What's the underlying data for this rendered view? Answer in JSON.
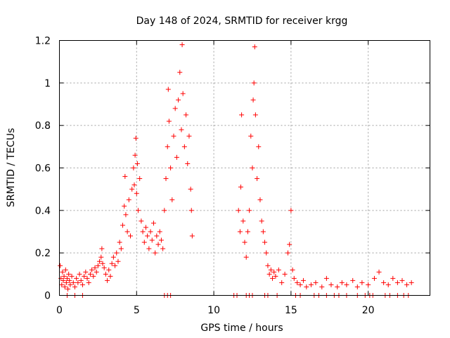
{
  "chart_data": {
    "type": "scatter",
    "title": "Day 148 of 2024, SRMTID for receiver krgg",
    "xlabel": "GPS time / hours",
    "ylabel": "SRMTID / TECUs",
    "xlim": [
      0,
      24
    ],
    "ylim": [
      0,
      1.2
    ],
    "x_ticks": [
      0,
      5,
      10,
      15,
      20
    ],
    "x_tick_labels": [
      "0",
      "5",
      "10",
      "15",
      "20"
    ],
    "y_ticks": [
      0,
      0.2,
      0.4,
      0.6,
      0.8,
      1.0,
      1.2
    ],
    "y_tick_labels": [
      "0",
      "0.2",
      "0.4",
      "0.6",
      "0.8",
      "1",
      "1.2"
    ],
    "grid": true,
    "marker": "+",
    "series": [
      {
        "name": "SRMTID",
        "color": "#ff0000",
        "points": [
          [
            0.05,
            0.14
          ],
          [
            0.1,
            0.08
          ],
          [
            0.15,
            0.05
          ],
          [
            0.2,
            0.11
          ],
          [
            0.25,
            0.07
          ],
          [
            0.3,
            0.09
          ],
          [
            0.35,
            0.04
          ],
          [
            0.4,
            0.12
          ],
          [
            0.45,
            0.06
          ],
          [
            0.5,
            0.08
          ],
          [
            0.55,
            0.03
          ],
          [
            0.6,
            0.1
          ],
          [
            0.65,
            0.07
          ],
          [
            0.7,
            0.05
          ],
          [
            0.8,
            0.09
          ],
          [
            0.9,
            0.06
          ],
          [
            1.0,
            0.04
          ],
          [
            1.1,
            0.08
          ],
          [
            1.2,
            0.06
          ],
          [
            1.3,
            0.1
          ],
          [
            1.4,
            0.07
          ],
          [
            1.5,
            0.05
          ],
          [
            1.6,
            0.09
          ],
          [
            1.7,
            0.11
          ],
          [
            1.8,
            0.08
          ],
          [
            1.9,
            0.06
          ],
          [
            2.0,
            0.1
          ],
          [
            2.1,
            0.12
          ],
          [
            2.2,
            0.09
          ],
          [
            2.3,
            0.13
          ],
          [
            2.4,
            0.11
          ],
          [
            2.5,
            0.14
          ],
          [
            2.6,
            0.16
          ],
          [
            2.7,
            0.18
          ],
          [
            2.75,
            0.22
          ],
          [
            2.8,
            0.15
          ],
          [
            2.9,
            0.13
          ],
          [
            3.0,
            0.1
          ],
          [
            3.1,
            0.07
          ],
          [
            3.2,
            0.12
          ],
          [
            3.3,
            0.09
          ],
          [
            3.4,
            0.15
          ],
          [
            3.5,
            0.18
          ],
          [
            3.6,
            0.14
          ],
          [
            3.7,
            0.2
          ],
          [
            3.8,
            0.16
          ],
          [
            3.9,
            0.25
          ],
          [
            4.0,
            0.22
          ],
          [
            4.1,
            0.33
          ],
          [
            4.2,
            0.42
          ],
          [
            4.25,
            0.56
          ],
          [
            4.3,
            0.38
          ],
          [
            4.4,
            0.3
          ],
          [
            4.5,
            0.45
          ],
          [
            4.6,
            0.28
          ],
          [
            4.7,
            0.5
          ],
          [
            4.8,
            0.6
          ],
          [
            4.85,
            0.52
          ],
          [
            4.9,
            0.66
          ],
          [
            4.95,
            0.74
          ],
          [
            5.0,
            0.48
          ],
          [
            5.05,
            0.62
          ],
          [
            5.1,
            0.4
          ],
          [
            5.2,
            0.55
          ],
          [
            5.3,
            0.35
          ],
          [
            5.4,
            0.3
          ],
          [
            5.5,
            0.25
          ],
          [
            5.6,
            0.32
          ],
          [
            5.7,
            0.28
          ],
          [
            5.8,
            0.22
          ],
          [
            5.9,
            0.3
          ],
          [
            6.0,
            0.26
          ],
          [
            6.1,
            0.34
          ],
          [
            6.2,
            0.2
          ],
          [
            6.3,
            0.28
          ],
          [
            6.4,
            0.24
          ],
          [
            6.5,
            0.3
          ],
          [
            6.6,
            0.26
          ],
          [
            6.7,
            0.22
          ],
          [
            6.8,
            0.4
          ],
          [
            6.9,
            0.55
          ],
          [
            7.0,
            0.7
          ],
          [
            7.05,
            0.97
          ],
          [
            7.1,
            0.82
          ],
          [
            7.2,
            0.6
          ],
          [
            7.3,
            0.45
          ],
          [
            7.4,
            0.75
          ],
          [
            7.5,
            0.88
          ],
          [
            7.6,
            0.65
          ],
          [
            7.7,
            0.92
          ],
          [
            7.8,
            1.05
          ],
          [
            7.9,
            0.78
          ],
          [
            7.95,
            1.18
          ],
          [
            8.0,
            0.95
          ],
          [
            8.1,
            0.7
          ],
          [
            8.2,
            0.85
          ],
          [
            8.3,
            0.62
          ],
          [
            8.4,
            0.75
          ],
          [
            8.5,
            0.5
          ],
          [
            8.55,
            0.4
          ],
          [
            8.6,
            0.28
          ],
          [
            11.6,
            0.4
          ],
          [
            11.7,
            0.3
          ],
          [
            11.75,
            0.51
          ],
          [
            11.8,
            0.85
          ],
          [
            11.9,
            0.35
          ],
          [
            12.0,
            0.25
          ],
          [
            12.1,
            0.18
          ],
          [
            12.2,
            0.3
          ],
          [
            12.3,
            0.4
          ],
          [
            12.4,
            0.75
          ],
          [
            12.5,
            0.6
          ],
          [
            12.55,
            0.92
          ],
          [
            12.6,
            1.0
          ],
          [
            12.65,
            1.17
          ],
          [
            12.7,
            0.85
          ],
          [
            12.8,
            0.55
          ],
          [
            12.9,
            0.7
          ],
          [
            13.0,
            0.45
          ],
          [
            13.1,
            0.35
          ],
          [
            13.2,
            0.3
          ],
          [
            13.3,
            0.25
          ],
          [
            13.4,
            0.2
          ],
          [
            13.5,
            0.14
          ],
          [
            13.6,
            0.1
          ],
          [
            13.7,
            0.12
          ],
          [
            13.8,
            0.08
          ],
          [
            13.9,
            0.11
          ],
          [
            14.0,
            0.09
          ],
          [
            14.2,
            0.12
          ],
          [
            14.4,
            0.06
          ],
          [
            14.6,
            0.1
          ],
          [
            14.8,
            0.2
          ],
          [
            14.9,
            0.24
          ],
          [
            15.0,
            0.4
          ],
          [
            15.1,
            0.12
          ],
          [
            15.2,
            0.08
          ],
          [
            15.4,
            0.06
          ],
          [
            15.6,
            0.05
          ],
          [
            15.8,
            0.07
          ],
          [
            16.0,
            0.04
          ],
          [
            16.3,
            0.05
          ],
          [
            16.6,
            0.06
          ],
          [
            17.0,
            0.04
          ],
          [
            17.3,
            0.08
          ],
          [
            17.6,
            0.05
          ],
          [
            18.0,
            0.04
          ],
          [
            18.3,
            0.06
          ],
          [
            18.6,
            0.05
          ],
          [
            19.0,
            0.07
          ],
          [
            19.3,
            0.04
          ],
          [
            19.6,
            0.06
          ],
          [
            20.0,
            0.05
          ],
          [
            20.4,
            0.08
          ],
          [
            20.7,
            0.11
          ],
          [
            21.0,
            0.06
          ],
          [
            21.3,
            0.05
          ],
          [
            21.6,
            0.08
          ],
          [
            21.9,
            0.06
          ],
          [
            22.2,
            0.07
          ],
          [
            22.5,
            0.05
          ],
          [
            22.8,
            0.06
          ]
        ],
        "zero_points": [
          0.5,
          1.0,
          1.5,
          6.8,
          7.0,
          7.2,
          11.3,
          11.5,
          12.1,
          12.3,
          12.5,
          13.3,
          13.5,
          14.1,
          15.3,
          15.6,
          16.5,
          16.8,
          17.3,
          17.8,
          18.1,
          18.6,
          19.3,
          19.8,
          20.1,
          20.3,
          21.1,
          21.4,
          21.9,
          22.3,
          22.6
        ]
      }
    ]
  }
}
